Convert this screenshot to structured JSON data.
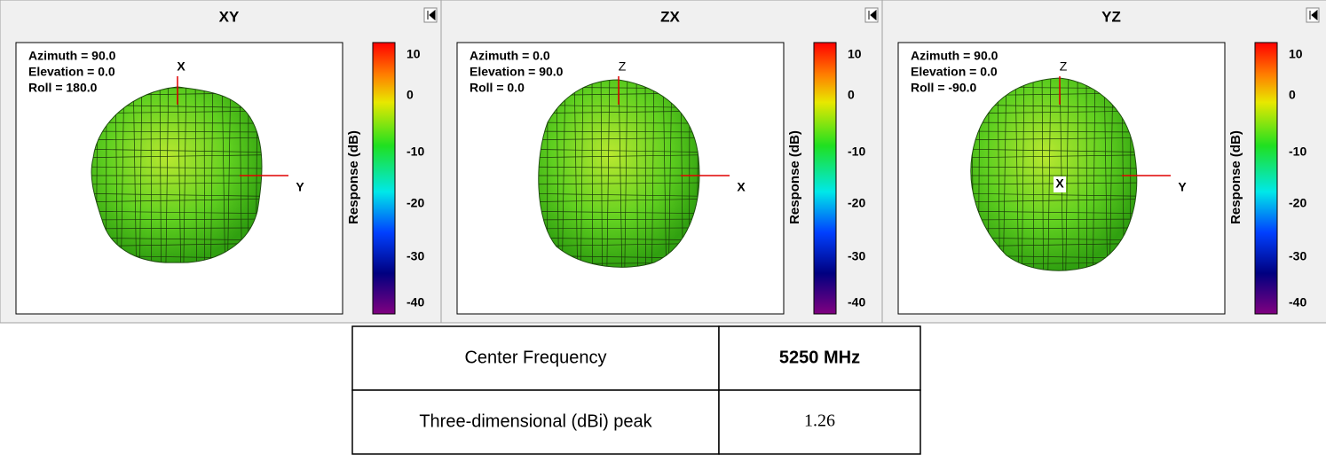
{
  "panels": [
    {
      "title": "XY",
      "orientation": [
        "Azimuth = 90.0",
        "Elevation = 0.0",
        "Roll = 180.0"
      ],
      "axes": [
        "X",
        "Y"
      ],
      "colorbar": {
        "label": "Response  (dB)",
        "ticks": [
          10,
          0,
          -10,
          -20,
          -30,
          -40
        ]
      }
    },
    {
      "title": "ZX",
      "orientation": [
        "Azimuth = 0.0",
        "Elevation = 90.0",
        "Roll = 0.0"
      ],
      "axes": [
        "Z",
        "X"
      ],
      "colorbar": {
        "label": "Response  (dB)",
        "ticks": [
          10,
          0,
          -10,
          -20,
          -30,
          -40
        ]
      }
    },
    {
      "title": "YZ",
      "orientation": [
        "Azimuth = 90.0",
        "Elevation = 0.0",
        "Roll = -90.0"
      ],
      "axes": [
        "Z",
        "Y",
        "X"
      ],
      "colorbar": {
        "label": "Response  (dB)",
        "ticks": [
          10,
          0,
          -10,
          -20,
          -30,
          -40
        ]
      }
    }
  ],
  "table": {
    "rows": [
      [
        "Center  Frequency",
        "5250 MHz"
      ],
      [
        "Three-dimensional (dBi) peak",
        "1.26"
      ]
    ]
  }
}
